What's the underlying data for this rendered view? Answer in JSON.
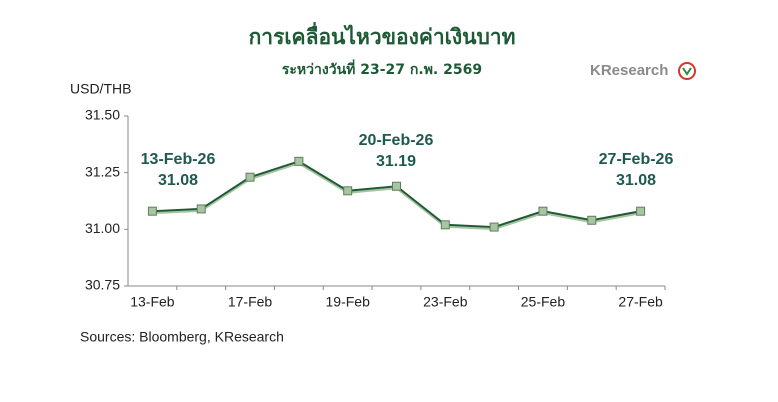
{
  "chart_data": {
    "type": "line",
    "title": "การเคลื่อนไหวของค่าเงินบาท",
    "subtitle": "ระหว่างวันที่ 23-27 ก.พ. 2569",
    "brand": "KResearch",
    "y_label": "USD/THB",
    "source": "Sources: Bloomberg, KResearch",
    "categories": [
      "13-Feb",
      null,
      "17-Feb",
      null,
      "19-Feb",
      null,
      "23-Feb",
      null,
      "25-Feb",
      null,
      "27-Feb"
    ],
    "series": [
      {
        "name": "USD/THB",
        "color": "#1e5a36",
        "marker_color": "#a8c4a2",
        "values": [
          31.08,
          31.09,
          31.23,
          31.3,
          31.17,
          31.19,
          31.02,
          31.01,
          31.08,
          31.04,
          31.08
        ]
      }
    ],
    "ylim": [
      30.75,
      31.5
    ],
    "yticks": [
      {
        "value": 30.75,
        "label": "30.75"
      },
      {
        "value": 31.0,
        "label": "31.00"
      },
      {
        "value": 31.25,
        "label": "31.25"
      },
      {
        "value": 31.5,
        "label": "31.50"
      }
    ],
    "annotations": [
      {
        "date": "13-Feb-26",
        "value": 31.08
      },
      {
        "date": "20-Feb-26",
        "value": 31.19
      },
      {
        "date": "27-Feb-26",
        "value": 31.08
      }
    ],
    "grid": false
  }
}
